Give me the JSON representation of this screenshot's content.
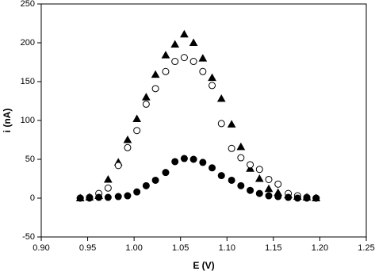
{
  "chart_data": {
    "type": "scatter",
    "x_label": "E (V)",
    "y_label": "i (nA)",
    "x": [
      0.942,
      0.952,
      0.962,
      0.972,
      0.983,
      0.993,
      1.003,
      1.013,
      1.023,
      1.034,
      1.044,
      1.054,
      1.064,
      1.074,
      1.084,
      1.094,
      1.105,
      1.115,
      1.125,
      1.135,
      1.145,
      1.155,
      1.166,
      1.176,
      1.186,
      1.196
    ],
    "series": [
      {
        "marker": "triangle-filled",
        "color": "#000000",
        "values": [
          0,
          1,
          3,
          24,
          46,
          75,
          102,
          130,
          159,
          184,
          198,
          211,
          200,
          180,
          155,
          128,
          95,
          66,
          38,
          25,
          12,
          7,
          4,
          2,
          1,
          0
        ]
      },
      {
        "marker": "circle-open",
        "color": "#000000",
        "values": [
          0,
          1,
          6,
          13,
          42,
          65,
          87,
          121,
          141,
          163,
          176,
          181,
          176,
          163,
          145,
          96,
          64,
          52,
          43,
          37,
          24,
          18,
          6,
          3,
          1,
          0
        ]
      },
      {
        "marker": "circle-filled",
        "color": "#000000",
        "values": [
          0,
          0,
          1,
          1,
          2,
          3,
          8,
          16,
          23,
          33,
          47,
          51,
          50,
          46,
          39,
          29,
          23,
          16,
          10,
          6,
          3,
          2,
          1,
          0,
          0,
          0
        ]
      }
    ],
    "xlim": [
      0.9,
      1.25
    ],
    "xticks": [
      {
        "value": 0.9,
        "label": "0.90"
      },
      {
        "value": 0.95,
        "label": "0.95"
      },
      {
        "value": 1,
        "label": "1.00"
      },
      {
        "value": 1.05,
        "label": "1.05"
      },
      {
        "value": 1.1,
        "label": "1.10"
      },
      {
        "value": 1.15,
        "label": "1.15"
      },
      {
        "value": 1.2,
        "label": "1.20"
      },
      {
        "value": 1.25,
        "label": "1.25"
      }
    ],
    "ylim": [
      -50,
      250
    ],
    "yticks": [
      -50,
      0,
      50,
      100,
      150,
      200,
      250
    ]
  }
}
